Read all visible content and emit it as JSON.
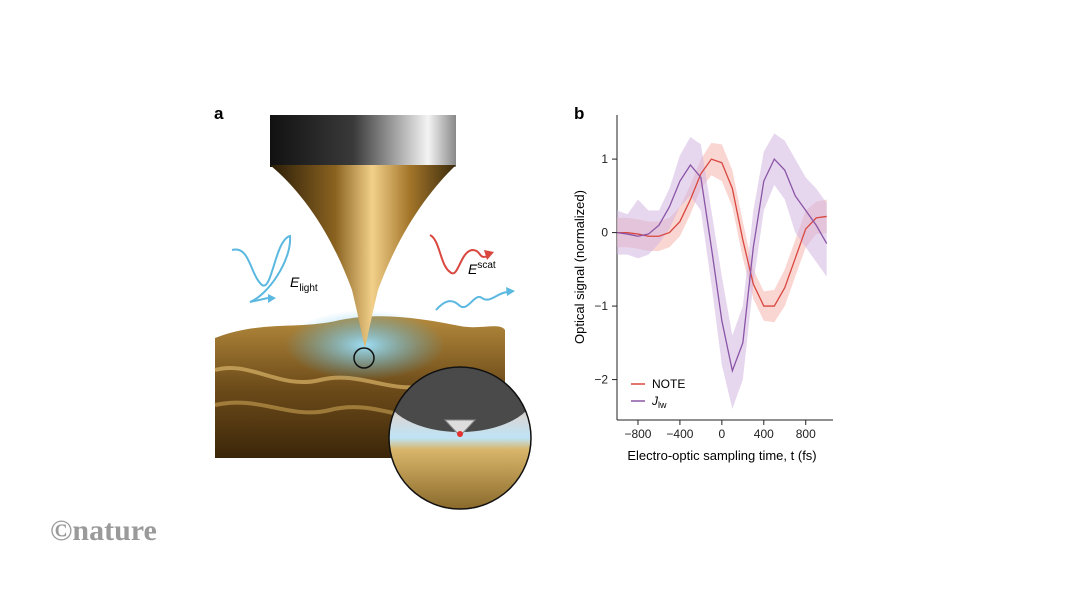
{
  "panel_a": {
    "label": "a",
    "incident": {
      "symbol": "E",
      "subscript": "light"
    },
    "scattered": {
      "symbol": "E",
      "superscript": "scat"
    }
  },
  "logo": "©nature",
  "chart_data": {
    "type": "line",
    "panel_label": "b",
    "x_label": "Electro-optic sampling time, t (fs)",
    "y_label": "Optical signal (normalized)",
    "x": [
      -1000,
      -900,
      -800,
      -700,
      -600,
      -500,
      -400,
      -300,
      -200,
      -100,
      0,
      100,
      200,
      300,
      400,
      500,
      600,
      700,
      800,
      900,
      1000
    ],
    "series": [
      {
        "name": "NOTE",
        "color": "#d9473f",
        "band_color": "#f6b5ad",
        "values": [
          0,
          0,
          -0.02,
          -0.05,
          -0.05,
          0,
          0.15,
          0.45,
          0.8,
          1.0,
          0.95,
          0.6,
          -0.1,
          -0.7,
          -1.0,
          -1.0,
          -0.75,
          -0.35,
          0.05,
          0.2,
          0.22
        ],
        "upper": [
          0.2,
          0.2,
          0.18,
          0.15,
          0.15,
          0.2,
          0.35,
          0.65,
          1.0,
          1.22,
          1.2,
          0.85,
          0.15,
          -0.5,
          -0.8,
          -0.78,
          -0.5,
          -0.1,
          0.3,
          0.42,
          0.45
        ],
        "lower": [
          -0.2,
          -0.2,
          -0.22,
          -0.25,
          -0.25,
          -0.2,
          -0.05,
          0.25,
          0.6,
          0.78,
          0.7,
          0.35,
          -0.35,
          -0.9,
          -1.2,
          -1.22,
          -1.0,
          -0.6,
          -0.2,
          -0.02,
          -0.01
        ]
      },
      {
        "name": "J",
        "name_subscript": "lw",
        "color": "#8a55a6",
        "band_color": "#d2b6e0",
        "values": [
          0,
          -0.02,
          -0.05,
          -0.02,
          0.1,
          0.35,
          0.7,
          0.92,
          0.75,
          -0.2,
          -1.2,
          -1.88,
          -1.5,
          -0.2,
          0.7,
          1.0,
          0.85,
          0.5,
          0.3,
          0.1,
          -0.15
        ],
        "upper": [
          0.3,
          0.25,
          0.45,
          0.3,
          0.3,
          0.6,
          1.05,
          1.3,
          1.2,
          0.3,
          -0.6,
          -1.4,
          -1.0,
          0.3,
          1.1,
          1.35,
          1.25,
          1.0,
          0.75,
          0.6,
          0.4
        ],
        "lower": [
          -0.3,
          -0.3,
          -0.35,
          -0.3,
          -0.15,
          0.05,
          0.35,
          0.5,
          0.3,
          -0.7,
          -1.8,
          -2.4,
          -2.0,
          -0.7,
          0.3,
          0.65,
          0.45,
          0.0,
          -0.2,
          -0.4,
          -0.6
        ]
      }
    ],
    "xlim": [
      -1000,
      1060
    ],
    "xticks": [
      {
        "value": -800,
        "label": "−800"
      },
      {
        "value": -400,
        "label": "−400"
      },
      0,
      400,
      800
    ],
    "ylim": [
      -2.55,
      1.6
    ],
    "yticks": [
      {
        "value": -2,
        "label": "−2"
      },
      {
        "value": -1,
        "label": "−1"
      },
      0,
      1
    ],
    "legend": "lower-left"
  }
}
